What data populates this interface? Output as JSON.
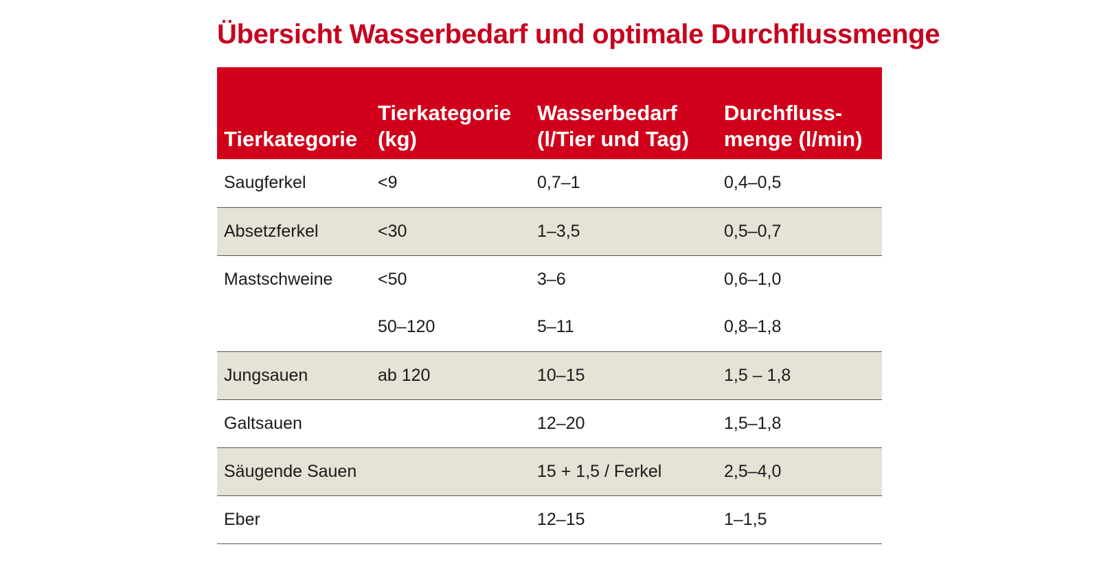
{
  "title": "Übersicht Wasserbedarf und optimale Durchflussmenge",
  "columns": [
    "Tierkategorie",
    "Tierkategorie\n(kg)",
    "Wasserbedarf\n(l/Tier und Tag)",
    "Durchfluss-\nmenge (l/min)"
  ],
  "rows": [
    {
      "cells": [
        "Saugferkel",
        "<9",
        "0,7–1",
        "0,4–0,5"
      ]
    },
    {
      "cells": [
        "Absetzferkel",
        "<30",
        "1–3,5",
        "0,5–0,7"
      ]
    },
    {
      "cells": [
        "Mastschweine",
        "<50",
        "3–6",
        "0,6–1,0"
      ]
    },
    {
      "cells": [
        "",
        "50–120",
        "5–11",
        "0,8–1,8"
      ]
    },
    {
      "cells": [
        "Jungsauen",
        "ab 120",
        "10–15",
        "1,5 – 1,8"
      ]
    },
    {
      "cells": [
        "Galtsauen",
        "",
        "12–20",
        "1,5–1,8"
      ]
    },
    {
      "cells": [
        "Säugende Sauen",
        "",
        "15 + 1,5 / Ferkel",
        "2,5–4,0"
      ]
    },
    {
      "cells": [
        "Eber",
        "",
        "12–15",
        "1–1,5"
      ]
    }
  ],
  "colors": {
    "accent": "#d0001a",
    "title": "#c8001e",
    "row_shade": "#e5e2d6"
  }
}
